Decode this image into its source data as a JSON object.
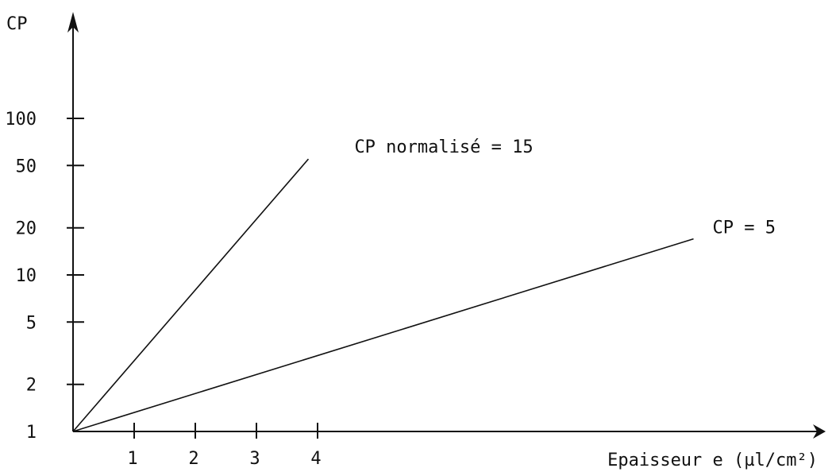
{
  "chart_data": {
    "type": "line",
    "title": "",
    "xlabel": "Epaisseur e (µl/cm²)",
    "ylabel": "CP",
    "y_scale": "log",
    "x_ticks": [
      1,
      2,
      3,
      4
    ],
    "y_ticks": [
      1,
      2,
      5,
      10,
      20,
      50,
      100
    ],
    "xlim": [
      0,
      10.6
    ],
    "ylim": [
      1,
      300
    ],
    "grid": false,
    "series": [
      {
        "name": "CP normalisé = 15",
        "x": [
          0,
          3.85
        ],
        "y": [
          1,
          55
        ]
      },
      {
        "name": "CP = 5",
        "x": [
          0,
          10.15
        ],
        "y": [
          1,
          17
        ]
      }
    ]
  }
}
